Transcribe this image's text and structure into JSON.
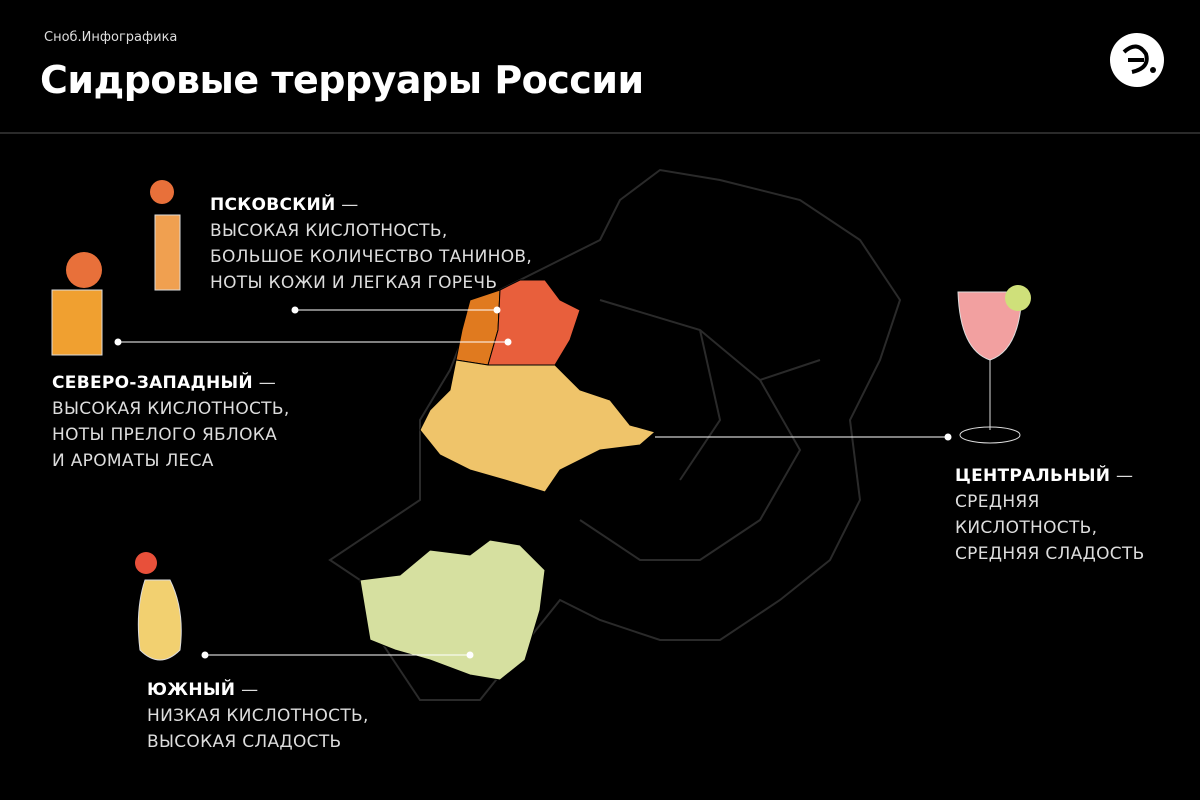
{
  "header": {
    "brand": "Сноб.Инфографика",
    "title": "Сидровые терруары России"
  },
  "regions": [
    {
      "name": "ПСКОВСКИЙ",
      "dash": "—",
      "lines": [
        "ВЫСОКАЯ КИСЛОТНОСТЬ,",
        "БОЛЬШОЕ КОЛИЧЕСТВО ТАНИНОВ,",
        "НОТЫ КОЖИ И ЛЕГКАЯ ГОРЕЧЬ"
      ]
    },
    {
      "name": "СЕВЕРО-ЗАПАДНЫЙ",
      "dash": "—",
      "lines": [
        "ВЫСОКАЯ КИСЛОТНОСТЬ,",
        "НОТЫ ПРЕЛОГО ЯБЛОКА",
        "И АРОМАТЫ ЛЕСА"
      ]
    },
    {
      "name": "ЦЕНТРАЛЬНЫЙ",
      "dash": "—",
      "lines": [
        "СРЕДНЯЯ",
        "КИСЛОТНОСТЬ,",
        "СРЕДНЯЯ СЛАДОСТЬ"
      ]
    },
    {
      "name": "ЮЖНЫЙ",
      "dash": "—",
      "lines": [
        "НИЗКАЯ КИСЛОТНОСТЬ,",
        "ВЫСОКАЯ СЛАДОСТЬ"
      ]
    }
  ]
}
